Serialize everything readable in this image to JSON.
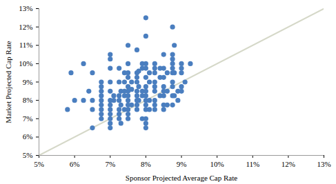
{
  "chart_data": {
    "type": "scatter",
    "x_label": "Sponsor Projected Average Cap Rate",
    "y_label": "Market Projected Cap Rate",
    "color": "#4a7ebf",
    "marker": "circle",
    "x": [
      5.8,
      5.9,
      6.0,
      6.25,
      6.25,
      6.4,
      6.5,
      6.5,
      6.5,
      6.5,
      6.75,
      6.75,
      6.75,
      6.75,
      6.75,
      6.75,
      6.75,
      6.75,
      6.75,
      7.0,
      7.0,
      7.0,
      7.0,
      7.0,
      7.0,
      7.0,
      7.0,
      7.0,
      7.0,
      7.0,
      7.0,
      7.1,
      7.1,
      7.25,
      7.25,
      7.25,
      7.25,
      7.25,
      7.25,
      7.25,
      7.3,
      7.3,
      7.3,
      7.4,
      7.4,
      7.4,
      7.4,
      7.4,
      7.5,
      7.5,
      7.5,
      7.5,
      7.5,
      7.5,
      7.5,
      7.5,
      7.5,
      7.5,
      7.5,
      7.5,
      7.6,
      7.6,
      7.6,
      7.75,
      7.75,
      7.75,
      7.75,
      7.75,
      7.75,
      7.75,
      7.75,
      7.75,
      7.8,
      7.8,
      7.8,
      7.9,
      7.9,
      7.9,
      7.9,
      7.9,
      8.0,
      8.0,
      8.0,
      8.0,
      8.0,
      8.0,
      8.0,
      8.0,
      8.0,
      8.0,
      8.0,
      8.0,
      8.0,
      8.0,
      8.1,
      8.1,
      8.1,
      8.1,
      8.25,
      8.25,
      8.25,
      8.25,
      8.25,
      8.25,
      8.25,
      8.25,
      8.25,
      8.4,
      8.4,
      8.4,
      8.5,
      8.5,
      8.5,
      8.5,
      8.5,
      8.5,
      8.5,
      8.5,
      8.6,
      8.6,
      8.6,
      8.75,
      8.75,
      8.75,
      8.75,
      8.75,
      8.75,
      8.75,
      8.75,
      8.75,
      8.75,
      8.8,
      8.8,
      8.8,
      8.9,
      8.9,
      9.0,
      9.0,
      9.0,
      9.0,
      9.0,
      9.1,
      9.25
    ],
    "values": [
      7.5,
      9.5,
      8.0,
      10.0,
      8.0,
      8.5,
      9.5,
      8.0,
      7.5,
      6.5,
      9.0,
      8.75,
      8.5,
      8.25,
      8.0,
      7.75,
      7.5,
      7.25,
      7.0,
      10.5,
      10.25,
      9.75,
      9.0,
      8.5,
      8.0,
      7.75,
      7.5,
      7.25,
      7.0,
      6.75,
      6.5,
      8.25,
      8.0,
      9.75,
      9.0,
      8.25,
      8.0,
      7.5,
      7.25,
      7.0,
      8.5,
      7.75,
      6.75,
      9.5,
      9.0,
      8.5,
      8.25,
      7.5,
      11.0,
      10.0,
      9.5,
      9.25,
      8.75,
      8.5,
      8.25,
      8.0,
      7.75,
      7.5,
      7.25,
      7.0,
      9.0,
      8.6,
      7.75,
      10.75,
      9.5,
      9.25,
      9.0,
      8.5,
      8.25,
      8.0,
      7.75,
      7.5,
      9.6,
      8.75,
      8.0,
      10.0,
      9.75,
      8.5,
      8.25,
      7.0,
      12.5,
      11.5,
      10.0,
      9.75,
      9.25,
      8.75,
      8.5,
      8.25,
      8.0,
      7.75,
      7.5,
      7.0,
      6.75,
      6.5,
      9.5,
      9.0,
      8.0,
      7.5,
      10.0,
      9.75,
      9.5,
      9.0,
      8.75,
      8.5,
      8.0,
      7.75,
      7.5,
      9.75,
      9.25,
      8.25,
      10.5,
      9.75,
      9.25,
      8.75,
      8.5,
      8.25,
      7.75,
      7.5,
      9.5,
      8.5,
      7.75,
      12.0,
      10.5,
      10.25,
      10.0,
      9.75,
      9.5,
      9.0,
      8.75,
      8.25,
      7.75,
      11.0,
      9.5,
      8.25,
      8.5,
      8.0,
      10.0,
      9.75,
      9.5,
      8.75,
      8.5,
      9.0,
      10.0
    ],
    "reference_line": {
      "x": [
        5,
        13
      ],
      "values": [
        5,
        13
      ],
      "color": "#d5d8c8",
      "line_style": "solid"
    },
    "xlim": [
      5,
      13
    ],
    "ylim": [
      5,
      13
    ],
    "xticks": [
      {
        "value": 5,
        "label": "5%"
      },
      {
        "value": 6,
        "label": "6%"
      },
      {
        "value": 7,
        "label": "7%"
      },
      {
        "value": 8,
        "label": "8%"
      },
      {
        "value": 9,
        "label": "9%"
      },
      {
        "value": 10,
        "label": "10%"
      },
      {
        "value": 11,
        "label": "11%"
      },
      {
        "value": 12,
        "label": "12%"
      },
      {
        "value": 13,
        "label": "13%"
      }
    ],
    "yticks": [
      {
        "value": 5,
        "label": "5%"
      },
      {
        "value": 6,
        "label": "6%"
      },
      {
        "value": 7,
        "label": "7%"
      },
      {
        "value": 8,
        "label": "8%"
      },
      {
        "value": 9,
        "label": "9%"
      },
      {
        "value": 10,
        "label": "10%"
      },
      {
        "value": 11,
        "label": "11%"
      },
      {
        "value": 12,
        "label": "12%"
      },
      {
        "value": 13,
        "label": "13%"
      }
    ],
    "grid": false
  }
}
